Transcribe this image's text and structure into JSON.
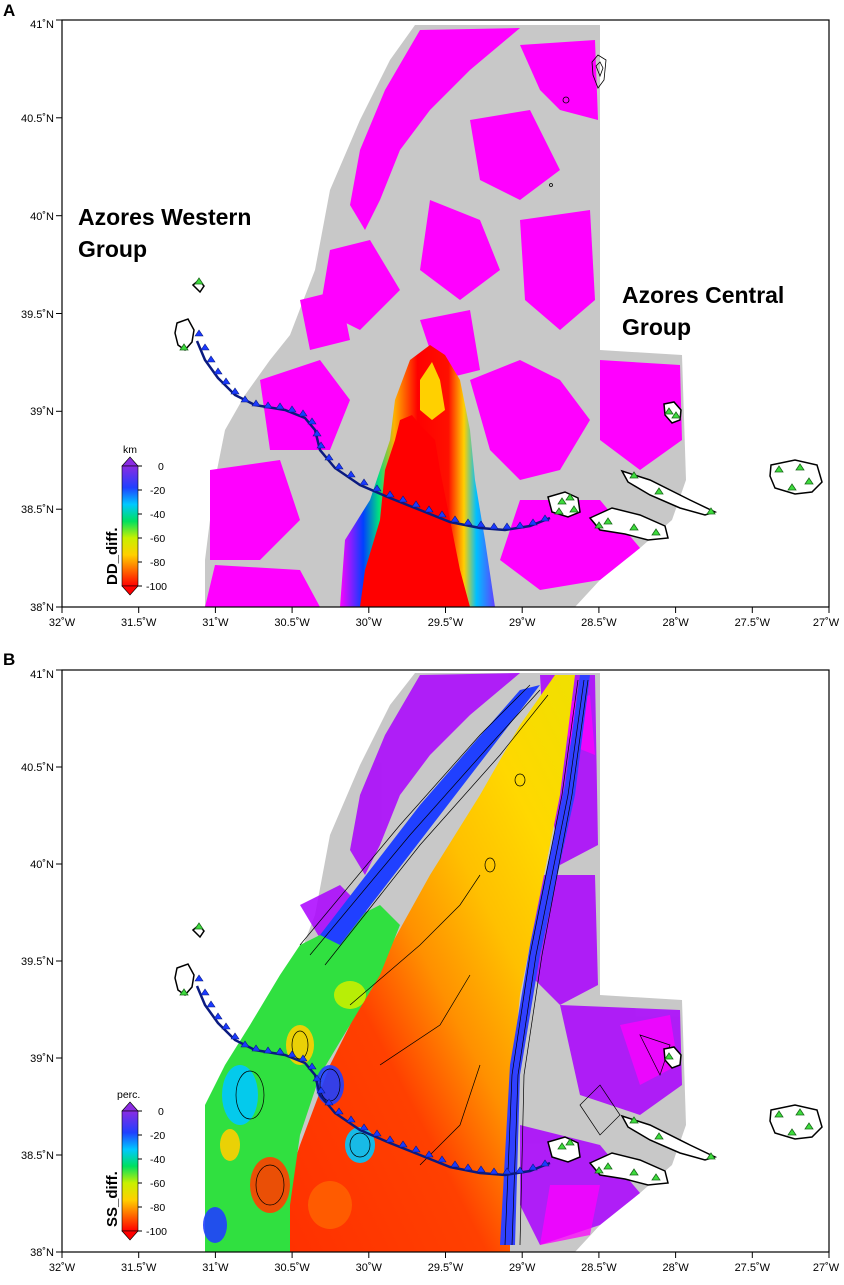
{
  "panels": [
    {
      "id": "A",
      "letter": "A",
      "group_labels": [
        "Azores Western",
        "Group",
        "Azores Central",
        "Group"
      ],
      "colorbar": {
        "unit": "km",
        "title": "DD_diff.",
        "ticks": [
          "0",
          "-20",
          "-40",
          "-60",
          "-80",
          "-100"
        ]
      }
    },
    {
      "id": "B",
      "letter": "B",
      "group_labels": [],
      "colorbar": {
        "unit": "perc.",
        "title": "SS_diff.",
        "ticks": [
          "0",
          "-20",
          "-40",
          "-60",
          "-80",
          "-100"
        ]
      }
    }
  ],
  "axes": {
    "x_ticks": [
      "32˚W",
      "31.5˚W",
      "31˚W",
      "30.5˚W",
      "30˚W",
      "29.5˚W",
      "29˚W",
      "28.5˚W",
      "28˚W",
      "27.5˚W",
      "27˚W"
    ],
    "y_ticks": [
      "41˚N",
      "40.5˚N",
      "40˚N",
      "39.5˚N",
      "39˚N",
      "38.5˚N",
      "38˚N"
    ],
    "lon_range": [
      -32,
      -27
    ],
    "lat_range": [
      38,
      41
    ]
  },
  "colors": {
    "no_data": "#c8c8c8",
    "low_diff": "#ff00ff",
    "high_diff": "#ff0000",
    "station_triangle": "#3ddc3d",
    "trench_line": "#0a1a80"
  }
}
